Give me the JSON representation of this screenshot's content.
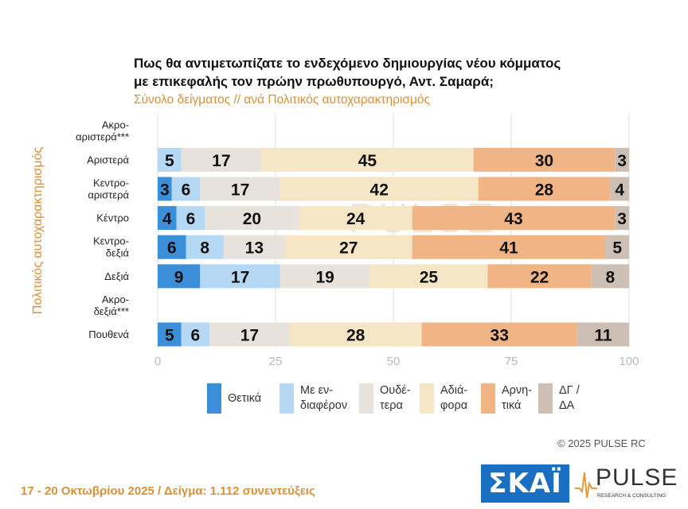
{
  "title_line1": "Πως θα αντιμετωπίζατε το ενδεχόμενο δημιουργίας νέου κόμματος",
  "title_line2": "με επικεφαλής τον πρώην πρωθυπουργό, Αντ. Σαμαρά;",
  "subtitle": "Σύνολο δείγματος // ανά Πολιτικός αυτοχαρακτηρισμός",
  "watermark": "PULSE",
  "copyright": "©  2025  PULSE RC",
  "footer": "17 - 20 Οκτωβρίου 2025  /  Δείγμα:  1.112 συνεντεύξεις",
  "logos": {
    "skai": "ΣΚΑΪ",
    "pulse": "PULSE",
    "pulse_sub": "RESEARCH & CONSULTING"
  },
  "colors": {
    "positive": "#3b8fd8",
    "interested": "#b5d8f5",
    "neutral": "#e8e2dc",
    "indifferent": "#f5e7c6",
    "negative": "#f1b585",
    "dkna": "#cdbfb4",
    "accent": "#d9903a"
  },
  "chart_data": {
    "type": "bar",
    "orientation": "horizontal",
    "stacked": true,
    "ylabel": "Πολιτικός αυτοχαρακτηρισμός",
    "xlim": [
      0,
      100
    ],
    "xticks": [
      0,
      25,
      50,
      75,
      100
    ],
    "grid": true,
    "legend_position": "bottom",
    "categories": [
      "Ακρο-\nαριστερά***",
      "Αριστερά",
      "Κεντρο-\nαριστερά",
      "Κέντρο",
      "Κεντρο-\nδεξιά",
      "Δεξιά",
      "Ακρο-\nδεξιά***",
      "Πουθενά"
    ],
    "series": [
      {
        "name": "Θετικά",
        "color": "#3b8fd8",
        "values": [
          null,
          0,
          3,
          4,
          6,
          9,
          null,
          5
        ]
      },
      {
        "name": "Με εν-\nδιαφέρον",
        "color": "#b5d8f5",
        "values": [
          null,
          5,
          6,
          6,
          8,
          17,
          null,
          6
        ]
      },
      {
        "name": "Ουδέ-\nτερα",
        "color": "#e8e2dc",
        "values": [
          null,
          17,
          17,
          20,
          13,
          19,
          null,
          17
        ]
      },
      {
        "name": "Αδιά-\nφορα",
        "color": "#f5e7c6",
        "values": [
          null,
          45,
          42,
          24,
          27,
          25,
          null,
          28
        ]
      },
      {
        "name": "Αρνη-\nτικά",
        "color": "#f1b585",
        "values": [
          null,
          30,
          28,
          43,
          41,
          22,
          null,
          33
        ]
      },
      {
        "name": "ΔΓ /\nΔΑ",
        "color": "#cdbfb4",
        "values": [
          null,
          3,
          4,
          3,
          5,
          8,
          null,
          11
        ]
      }
    ]
  }
}
